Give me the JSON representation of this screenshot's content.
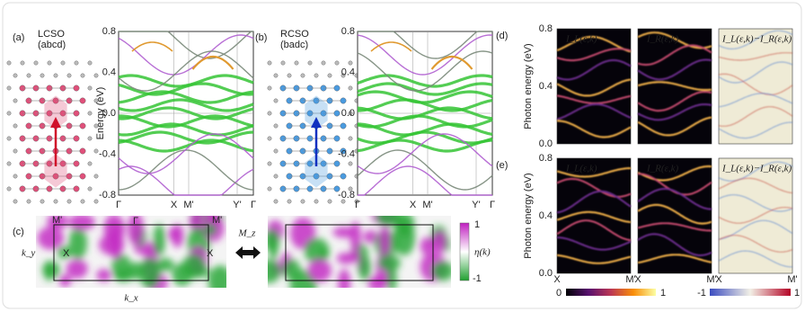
{
  "panel_a": {
    "label": "(a)",
    "name": "LCSO",
    "order": "(abcd)"
  },
  "panel_b": {
    "label": "(b)",
    "name": "RCSO",
    "order": "(badc)"
  },
  "band_plot": {
    "y_label": "Energy (eV)",
    "y_ticks": [
      "0.8",
      "0.4",
      "0.0",
      "-0.4",
      "-0.8"
    ],
    "x_ticks": [
      "Γ",
      "X",
      "M'",
      "Y'",
      "Γ"
    ]
  },
  "panel_c": {
    "label": "(c)",
    "operation": "M_z",
    "k_y": "k_y",
    "k_x": "k_x",
    "points": [
      "M'",
      "Γ",
      "X"
    ],
    "colorbar": {
      "max": "1",
      "min": "-1",
      "label": "η(k)"
    }
  },
  "panel_d": {
    "label": "(d)"
  },
  "panel_e": {
    "label": "(e)"
  },
  "photon_plot": {
    "y_label": "Photon energy (eV)",
    "y_ticks": [
      "0.8",
      "0.4",
      "0.0"
    ],
    "x_ticks": [
      "X",
      "M'"
    ],
    "titles": [
      "I_L(ε,k)",
      "I_R(ε,k)",
      "I_L(ε,k)−I_R(ε,k)"
    ]
  },
  "colorbars": {
    "intensity": [
      "0",
      "1"
    ],
    "difference": [
      "-1",
      "1"
    ]
  }
}
